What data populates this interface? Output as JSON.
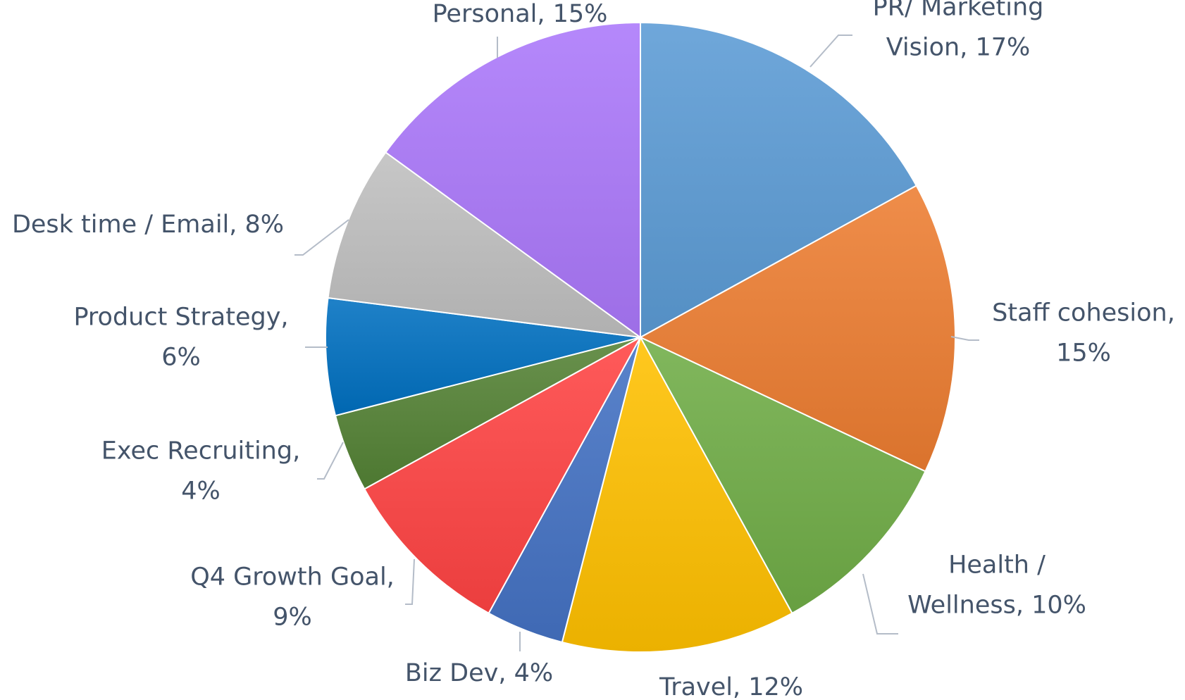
{
  "chart_data": {
    "type": "pie",
    "slices": [
      {
        "label": [
          "PR/ Marketing",
          "Vision, 17%"
        ],
        "value": 17,
        "color": "#5b9bd5"
      },
      {
        "label": [
          "Staff cohesion,",
          "15%"
        ],
        "value": 15,
        "color": "#ed7d31"
      },
      {
        "label": [
          "Health /",
          "Wellness, 10%"
        ],
        "value": 10,
        "color": "#70ad47"
      },
      {
        "label": [
          "Travel, 12%"
        ],
        "value": 12,
        "color": "#ffc000"
      },
      {
        "label": [
          "Biz Dev, 4%"
        ],
        "value": 4,
        "color": "#4472c4"
      },
      {
        "label": [
          "Q4 Growth Goal,",
          "9%"
        ],
        "value": 9,
        "color": "#ff4343"
      },
      {
        "label": [
          "Exec Recruiting,",
          "4%"
        ],
        "value": 4,
        "color": "#548235"
      },
      {
        "label": [
          "Product Strategy,",
          "6%"
        ],
        "value": 6,
        "color": "#0070c0"
      },
      {
        "label": [
          "Desk time / Email, 8%"
        ],
        "value": 8,
        "color": "#bfbfbf"
      },
      {
        "label": [
          "Personal, 15%"
        ],
        "value": 15,
        "color": "#ab78fa"
      }
    ]
  }
}
